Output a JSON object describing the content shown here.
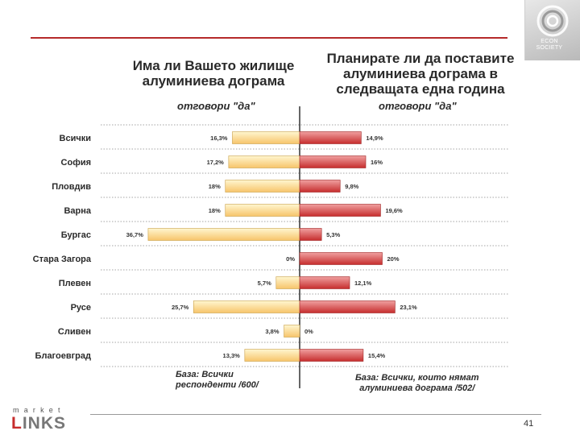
{
  "logo_text": "ECON\nSOCIETY",
  "titles": {
    "left": "Има ли Вашето жилище алуминиева дограма",
    "right": "Планирате ли да поставите алуминиева дограма в следващата една година"
  },
  "subtitles": {
    "left": "отговори \"да\"",
    "right": "отговори \"да\""
  },
  "footnotes": {
    "left": "База: Всички\nреспонденти /600/",
    "right": "База: Всички, които нямат\nалуминиева дограма /502/"
  },
  "brand": {
    "small_word": "market",
    "logo_accent": "L",
    "logo_rest": "INKS"
  },
  "page_number": "41",
  "colors": {
    "left_bar_light": "#fff6d0",
    "left_bar_dark": "#f7c46a",
    "right_bar_light": "#f0a0a0",
    "right_bar_dark": "#c62d2d",
    "accent": "#b52a2a"
  },
  "chart_data": {
    "type": "bar",
    "orientation": "horizontal-diverging",
    "categories": [
      "Всички",
      "София",
      "Пловдив",
      "Варна",
      "Бургас",
      "Стара Загора",
      "Плевен",
      "Русе",
      "Сливен",
      "Благоевград"
    ],
    "series": [
      {
        "name": "Има ли Вашето жилище алуминиева дограма",
        "side": "left",
        "values": [
          16.3,
          17.2,
          18,
          18,
          36.7,
          0,
          5.7,
          25.7,
          3.8,
          13.3
        ],
        "labels": [
          "16,3%",
          "17,2%",
          "18%",
          "18%",
          "36,7%",
          "0%",
          "5,7%",
          "25,7%",
          "3,8%",
          "13,3%"
        ]
      },
      {
        "name": "Планирате ли да поставите алуминиева дограма в следващата една година",
        "side": "right",
        "values": [
          14.9,
          16,
          9.8,
          19.6,
          5.3,
          20,
          12.1,
          23.1,
          0,
          15.4
        ],
        "labels": [
          "14,9%",
          "16%",
          "9,8%",
          "19,6%",
          "5,3%",
          "20%",
          "12,1%",
          "23,1%",
          "0%",
          "15,4%"
        ]
      }
    ],
    "xlim": [
      0,
      40
    ]
  }
}
